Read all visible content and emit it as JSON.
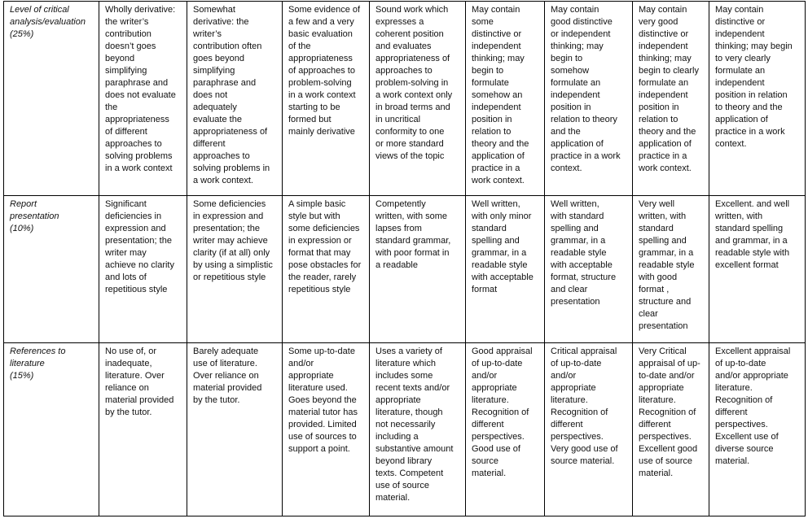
{
  "rows": [
    {
      "criterion": "Level of critical\nanalysis/evaluation\n(25%)",
      "cells": [
        "Wholly derivative:\nthe writer’s\ncontribution\ndoesn’t goes\nbeyond\nsimplifying\nparaphrase and\ndoes not evaluate\nthe\nappropriateness\nof different\napproaches to\nsolving problems\nin a work context",
        "Somewhat\nderivative: the\nwriter’s\ncontribution often\ngoes beyond\nsimplifying\nparaphrase and\ndoes not\nadequately\nevaluate the\nappropriateness of\ndifferent\napproaches to\nsolving problems in\na work context.",
        "Some evidence of\na few and a very\nbasic evaluation\nof the\nappropriateness\nof approaches to\nproblem-solving\nin a work context\nstarting to be\nformed but\nmainly derivative",
        "Sound work which\nexpresses a\ncoherent position\nand evaluates\nappropriateness of\napproaches to\nproblem-solving in\na work context only\nin broad terms and\nin uncritical\nconformity to one\nor more standard\nviews of the topic",
        "May contain\nsome\ndistinctive or\nindependent\nthinking; may\nbegin to\nformulate\nsomehow an\nindependent\nposition in\nrelation to\ntheory and the\napplication of\npractice in a\nwork context.",
        "May contain\ngood distinctive\nor independent\nthinking; may\nbegin to\nsomehow\nformulate an\nindependent\nposition in\nrelation to theory\nand the\napplication of\npractice in a work\ncontext.",
        "May contain\nvery good\ndistinctive or\nindependent\nthinking; may\nbegin to clearly\nformulate an\nindependent\nposition in\nrelation to\ntheory and the\napplication of\npractice in a\nwork context.",
        "May contain\ndistinctive or\nindependent\nthinking; may begin\nto very clearly\nformulate an\nindependent\nposition in relation\nto theory and the\napplication of\npractice in a work\ncontext."
      ]
    },
    {
      "criterion": "Report\npresentation\n(10%)",
      "cells": [
        "Significant\ndeficiencies in\nexpression and\npresentation; the\nwriter may\nachieve no clarity\nand lots of\nrepetitious style",
        "Some deficiencies\nin expression and\npresentation; the\nwriter may achieve\nclarity (if at all) only\nby using a simplistic\nor repetitious style",
        "A simple basic\nstyle but with\nsome deficiencies\nin expression or\nformat that may\npose obstacles for\nthe reader, rarely\nrepetitious style",
        "Competently\nwritten, with some\nlapses from\nstandard grammar,\nwith poor format  in\na readable",
        "Well written,\nwith only minor\nstandard\nspelling and\ngrammar, in a\nreadable style\nwith acceptable\nformat",
        "Well written,\nwith standard\nspelling and\ngrammar, in a\nreadable style\nwith acceptable\nformat, structure\nand clear\npresentation",
        "Very well\nwritten, with\nstandard\nspelling and\ngrammar, in a\nreadable style\nwith good\nformat ,\nstructure and\nclear\npresentation",
        "Excellent. and well\nwritten, with\nstandard spelling\nand grammar, in a\nreadable style with\nexcellent format"
      ]
    },
    {
      "criterion": "References to\nliterature\n(15%)",
      "cells": [
        "No use of, or\ninadequate,\nliterature. Over\nreliance on\nmaterial provided\nby the tutor.",
        "Barely adequate\nuse of literature.\nOver reliance on\nmaterial provided\nby the tutor.",
        "Some up-to-date\nand/or\nappropriate\nliterature used.\nGoes beyond the\nmaterial tutor has\nprovided. Limited\nuse of sources to\nsupport a point.",
        "Uses a variety of\nliterature which\nincludes some\nrecent texts and/or\nappropriate\nliterature, though\nnot necessarily\nincluding a\nsubstantive amount\nbeyond library\ntexts. Competent\nuse of source\nmaterial.",
        "Good appraisal\nof up-to-date\nand/or\nappropriate\nliterature.\nRecognition of\ndifferent\nperspectives.\nGood use of\nsource\nmaterial.",
        "Critical appraisal\nof up-to-date\nand/or\nappropriate\nliterature.\nRecognition of\ndifferent\nperspectives.\nVery good use of\nsource material.",
        "Very Critical\nappraisal of up-\nto-date and/or\nappropriate\nliterature.\nRecognition of\ndifferent\nperspectives.\nExcellent good\nuse of source\nmaterial.",
        "Excellent appraisal\nof up-to-date\nand/or appropriate\nliterature.\nRecognition of\ndifferent\nperspectives.\nExcellent use of\ndiverse source\nmaterial."
      ]
    }
  ]
}
